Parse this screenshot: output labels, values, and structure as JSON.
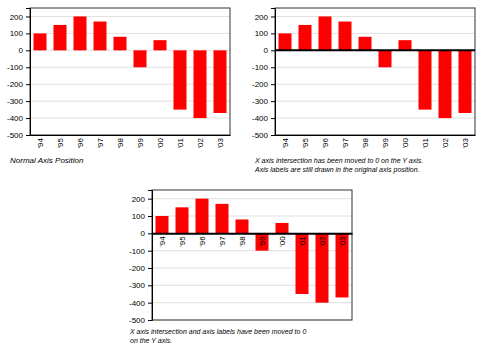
{
  "chart_data": [
    {
      "type": "bar",
      "title": "Normal Axis Position",
      "categories": [
        "'94",
        "'95",
        "'96",
        "'97",
        "'98",
        "'99",
        "'00",
        "'01",
        "'02",
        "'03"
      ],
      "values": [
        100,
        150,
        200,
        170,
        80,
        -100,
        60,
        -350,
        -400,
        -370
      ],
      "color": "#FF0000",
      "ylim": [
        -500,
        250
      ],
      "yticks": [
        -500,
        -400,
        -300,
        -200,
        -100,
        0,
        100,
        200
      ],
      "grid": true
    },
    {
      "type": "bar",
      "title": "X axis intersection has been moved to 0 on the Y axis.\nAxis labels are still drawn in the original axis position.",
      "categories": [
        "'94",
        "'95",
        "'96",
        "'97",
        "'98",
        "'99",
        "'00",
        "'01",
        "'02",
        "'03"
      ],
      "values": [
        100,
        150,
        200,
        170,
        80,
        -100,
        60,
        -350,
        -400,
        -370
      ],
      "color": "#FF0000",
      "ylim": [
        -500,
        250
      ],
      "yticks": [
        -500,
        -400,
        -300,
        -200,
        -100,
        0,
        100,
        200
      ],
      "grid": true
    },
    {
      "type": "bar",
      "title": "X axis intersection and axis labels have been moved to 0\non the Y axis.",
      "categories": [
        "'94",
        "'95",
        "'96",
        "'97",
        "'98",
        "'99",
        "'00",
        "'01",
        "'02",
        "'03"
      ],
      "values": [
        100,
        150,
        200,
        170,
        80,
        -100,
        60,
        -350,
        -400,
        -370
      ],
      "color": "#FF0000",
      "ylim": [
        -500,
        250
      ],
      "yticks": [
        -500,
        -400,
        -300,
        -200,
        -100,
        0,
        100,
        200
      ],
      "grid": true
    }
  ]
}
